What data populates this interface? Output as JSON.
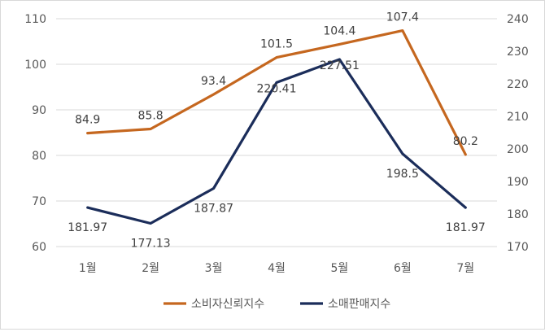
{
  "chart_data": {
    "type": "line",
    "categories": [
      "1월",
      "2월",
      "3월",
      "4월",
      "5월",
      "6월",
      "7월"
    ],
    "title": "",
    "xlabel": "",
    "ylabel": "",
    "y_left": {
      "min": 60,
      "max": 110,
      "step": 10,
      "ticks": [
        "60",
        "70",
        "80",
        "90",
        "100",
        "110"
      ]
    },
    "y_right": {
      "min": 170,
      "max": 240,
      "step": 10,
      "ticks": [
        "170",
        "180",
        "190",
        "200",
        "210",
        "220",
        "230",
        "240"
      ]
    },
    "grid": true,
    "legend_position": "bottom",
    "series": [
      {
        "name": "소비자신뢰지수",
        "axis": "left",
        "color": "#c5671f",
        "values": [
          84.9,
          85.8,
          93.4,
          101.5,
          104.4,
          107.4,
          80.2
        ],
        "labels": [
          "84.9",
          "85.8",
          "93.4",
          "101.5",
          "104.4",
          "107.4",
          "80.2"
        ]
      },
      {
        "name": "소매판매지수",
        "axis": "right",
        "color": "#1b2d5a",
        "values": [
          181.97,
          177.13,
          187.87,
          220.41,
          227.51,
          198.5,
          181.97
        ],
        "labels": [
          "181.97",
          "177.13",
          "187.87",
          "220.41",
          "227.51",
          "198.5",
          "181.97"
        ]
      }
    ]
  }
}
